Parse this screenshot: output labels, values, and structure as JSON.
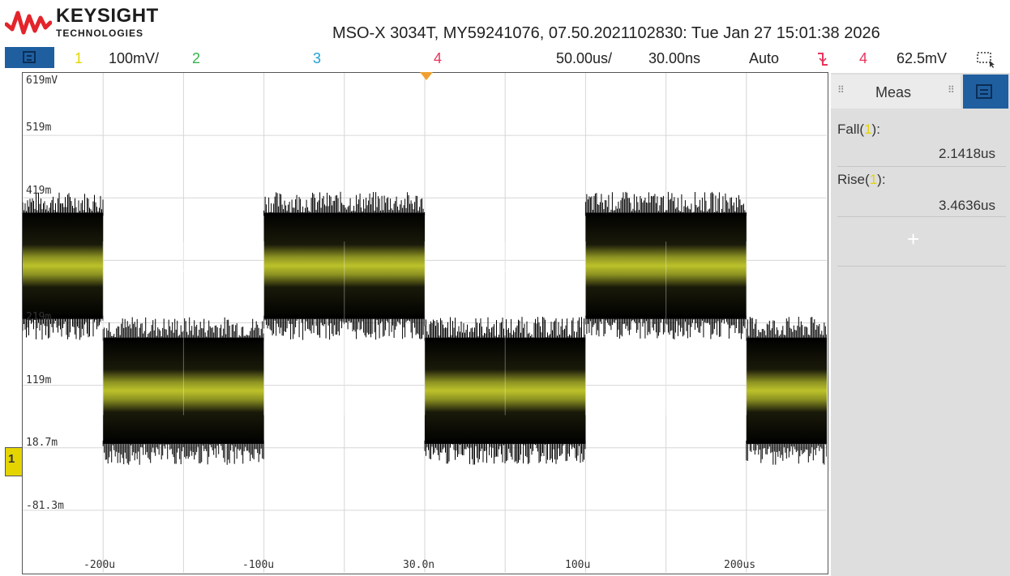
{
  "brand": {
    "name": "KEYSIGHT",
    "sub": "TECHNOLOGIES",
    "logo_color": "#e3242b"
  },
  "device_info": "MSO-X 3034T, MY59241076, 07.50.2021102830: Tue Jan 27 15:01:38 2026",
  "status_bar": {
    "ch1_num": "1",
    "ch1_scale": "100mV/",
    "ch2_num": "2",
    "ch3_num": "3",
    "ch4_num": "4",
    "timebase": "50.00us/",
    "delay": "30.00ns",
    "trigger_mode": "Auto",
    "trigger_slope_icon": "falling-edge-icon",
    "trigger_source": "4",
    "trigger_level": "62.5mV",
    "colors": {
      "ch1": "#e4d500",
      "ch2": "#37b34a",
      "ch3": "#1ea0d8",
      "ch4": "#e8345c"
    }
  },
  "voltage_labels": [
    "619mV",
    "519m",
    "419m",
    "219m",
    "119m",
    "18.7m",
    "-81.3m"
  ],
  "time_labels": [
    "-200u",
    "-100u",
    "30.0n",
    "100u",
    "200us"
  ],
  "ground_marker_label": "1",
  "sidebar": {
    "tab_title": "Meas",
    "measurements": [
      {
        "name": "Fall",
        "source": "1",
        "value": "2.1418us"
      },
      {
        "name": "Rise",
        "source": "1",
        "value": "3.4636us"
      }
    ],
    "add_label": "+"
  },
  "waveform": {
    "color": "#bcc22a",
    "levels_mV": {
      "high": 330,
      "low": 130
    },
    "segments": [
      {
        "start_us": -250,
        "end_us": -200,
        "state": "high"
      },
      {
        "start_us": -200,
        "end_us": -100,
        "state": "low"
      },
      {
        "start_us": -100,
        "end_us": 0,
        "state": "high"
      },
      {
        "start_us": 0,
        "end_us": 100,
        "state": "low"
      },
      {
        "start_us": 100,
        "end_us": 200,
        "state": "high"
      },
      {
        "start_us": 200,
        "end_us": 252,
        "state": "low"
      }
    ]
  }
}
